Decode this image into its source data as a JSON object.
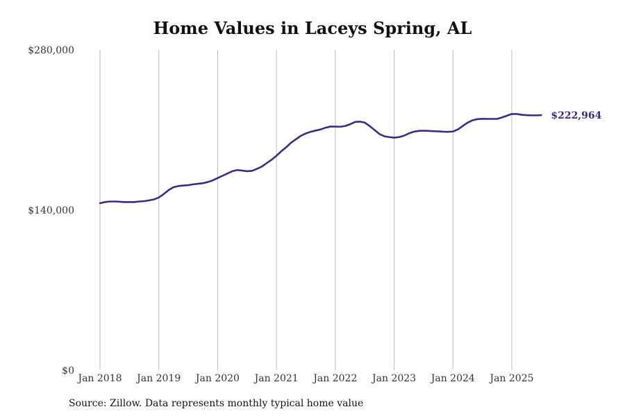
{
  "chart_data": {
    "type": "line",
    "title": "Home Values in Laceys Spring, AL",
    "xlabel": "",
    "ylabel": "",
    "ylim": [
      0,
      280000
    ],
    "y_ticks": [
      {
        "value": 0,
        "label": "$0"
      },
      {
        "value": 140000,
        "label": "$140,000"
      },
      {
        "value": 280000,
        "label": "$280,000"
      }
    ],
    "x_ticks": [
      {
        "value": "2018-01",
        "label": "Jan 2018"
      },
      {
        "value": "2019-01",
        "label": "Jan 2019"
      },
      {
        "value": "2020-01",
        "label": "Jan 2020"
      },
      {
        "value": "2021-01",
        "label": "Jan 2021"
      },
      {
        "value": "2022-01",
        "label": "Jan 2022"
      },
      {
        "value": "2023-01",
        "label": "Jan 2023"
      },
      {
        "value": "2024-01",
        "label": "Jan 2024"
      },
      {
        "value": "2025-01",
        "label": "Jan 2025"
      }
    ],
    "grid": "vertical",
    "series": [
      {
        "color": "#372c86",
        "end_label": "$222,964",
        "points": [
          [
            "2018-01",
            146000
          ],
          [
            "2018-02",
            147000
          ],
          [
            "2018-03",
            147500
          ],
          [
            "2018-04",
            147500
          ],
          [
            "2018-05",
            147300
          ],
          [
            "2018-06",
            147000
          ],
          [
            "2018-07",
            147000
          ],
          [
            "2018-08",
            147000
          ],
          [
            "2018-09",
            147500
          ],
          [
            "2018-10",
            147800
          ],
          [
            "2018-11",
            148500
          ],
          [
            "2018-12",
            149300
          ],
          [
            "2019-01",
            151000
          ],
          [
            "2019-02",
            154000
          ],
          [
            "2019-03",
            157500
          ],
          [
            "2019-04",
            160000
          ],
          [
            "2019-05",
            161000
          ],
          [
            "2019-06",
            161500
          ],
          [
            "2019-07",
            161800
          ],
          [
            "2019-08",
            162500
          ],
          [
            "2019-09",
            163000
          ],
          [
            "2019-10",
            163500
          ],
          [
            "2019-11",
            164500
          ],
          [
            "2019-12",
            166000
          ],
          [
            "2020-01",
            168000
          ],
          [
            "2020-02",
            170000
          ],
          [
            "2020-03",
            172000
          ],
          [
            "2020-04",
            174000
          ],
          [
            "2020-05",
            175000
          ],
          [
            "2020-06",
            174500
          ],
          [
            "2020-07",
            174000
          ],
          [
            "2020-08",
            174300
          ],
          [
            "2020-09",
            176000
          ],
          [
            "2020-10",
            178000
          ],
          [
            "2020-11",
            181000
          ],
          [
            "2020-12",
            184000
          ],
          [
            "2021-01",
            187500
          ],
          [
            "2021-02",
            191500
          ],
          [
            "2021-03",
            195000
          ],
          [
            "2021-04",
            199000
          ],
          [
            "2021-05",
            202000
          ],
          [
            "2021-06",
            205000
          ],
          [
            "2021-07",
            207000
          ],
          [
            "2021-08",
            208500
          ],
          [
            "2021-09",
            209500
          ],
          [
            "2021-10",
            210500
          ],
          [
            "2021-11",
            212000
          ],
          [
            "2021-12",
            213000
          ],
          [
            "2022-01",
            213000
          ],
          [
            "2022-02",
            212800
          ],
          [
            "2022-03",
            213500
          ],
          [
            "2022-04",
            215000
          ],
          [
            "2022-05",
            217000
          ],
          [
            "2022-06",
            217300
          ],
          [
            "2022-07",
            216500
          ],
          [
            "2022-08",
            213500
          ],
          [
            "2022-09",
            210000
          ],
          [
            "2022-10",
            206500
          ],
          [
            "2022-11",
            204500
          ],
          [
            "2022-12",
            203800
          ],
          [
            "2023-01",
            203300
          ],
          [
            "2023-02",
            203800
          ],
          [
            "2023-03",
            205000
          ],
          [
            "2023-04",
            207000
          ],
          [
            "2023-05",
            208500
          ],
          [
            "2023-06",
            209200
          ],
          [
            "2023-07",
            209400
          ],
          [
            "2023-08",
            209200
          ],
          [
            "2023-09",
            209000
          ],
          [
            "2023-10",
            208800
          ],
          [
            "2023-11",
            208500
          ],
          [
            "2023-12",
            208400
          ],
          [
            "2024-01",
            208700
          ],
          [
            "2024-02",
            210500
          ],
          [
            "2024-03",
            213500
          ],
          [
            "2024-04",
            216500
          ],
          [
            "2024-05",
            218500
          ],
          [
            "2024-06",
            219500
          ],
          [
            "2024-07",
            219800
          ],
          [
            "2024-08",
            219700
          ],
          [
            "2024-09",
            219700
          ],
          [
            "2024-10",
            219700
          ],
          [
            "2024-11",
            221000
          ],
          [
            "2024-12",
            222500
          ],
          [
            "2025-01",
            224000
          ],
          [
            "2025-02",
            224000
          ],
          [
            "2025-03",
            223300
          ],
          [
            "2025-04",
            223000
          ],
          [
            "2025-05",
            222800
          ],
          [
            "2025-06",
            222800
          ],
          [
            "2025-07",
            222964
          ]
        ]
      }
    ]
  },
  "footer": {
    "source": "Source: Zillow. Data represents monthly typical home value"
  }
}
